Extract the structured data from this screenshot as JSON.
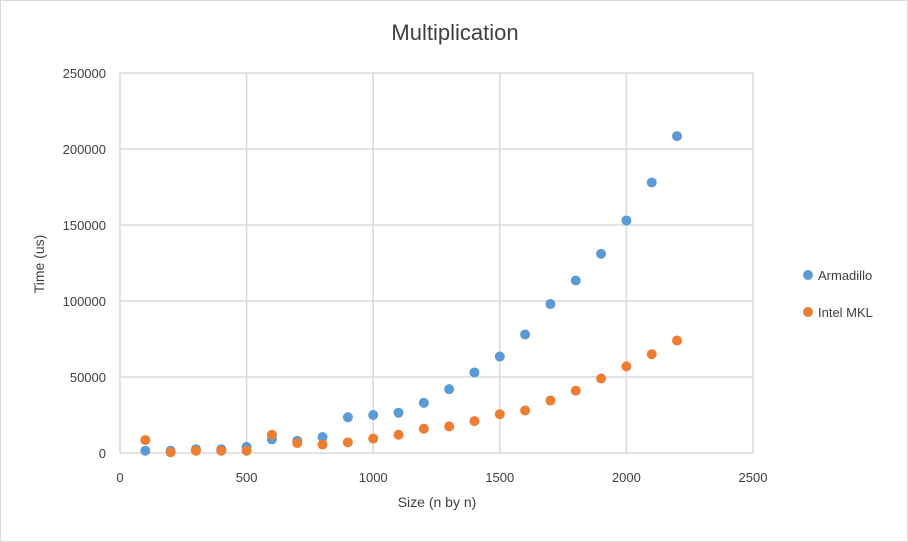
{
  "chart_data": {
    "type": "scatter",
    "title": "Multiplication",
    "xlabel": "Size (n by n)",
    "ylabel": "Time (us)",
    "xlim": [
      0,
      2500
    ],
    "ylim": [
      0,
      250000
    ],
    "xticks": [
      0,
      500,
      1000,
      1500,
      2000,
      2500
    ],
    "yticks": [
      0,
      50000,
      100000,
      150000,
      200000,
      250000
    ],
    "grid": "vertical and horizontal major gridlines",
    "legend_position": "right",
    "series": [
      {
        "name": "Armadillo",
        "color": "#5b9bd5",
        "points": [
          [
            100,
            1500
          ],
          [
            200,
            1500
          ],
          [
            300,
            2500
          ],
          [
            400,
            2500
          ],
          [
            500,
            4000
          ],
          [
            600,
            9000
          ],
          [
            700,
            8000
          ],
          [
            800,
            10500
          ],
          [
            900,
            23500
          ],
          [
            1000,
            25000
          ],
          [
            1100,
            26500
          ],
          [
            1200,
            33000
          ],
          [
            1300,
            42000
          ],
          [
            1400,
            53000
          ],
          [
            1500,
            63500
          ],
          [
            1600,
            78000
          ],
          [
            1700,
            98000
          ],
          [
            1800,
            113500
          ],
          [
            1900,
            131000
          ],
          [
            2000,
            153000
          ],
          [
            2100,
            178000
          ],
          [
            2200,
            208500
          ]
        ]
      },
      {
        "name": "Intel MKL",
        "color": "#ed7d31",
        "points": [
          [
            100,
            8500
          ],
          [
            200,
            500
          ],
          [
            300,
            1500
          ],
          [
            400,
            1500
          ],
          [
            500,
            1500
          ],
          [
            600,
            12000
          ],
          [
            700,
            6500
          ],
          [
            800,
            5500
          ],
          [
            900,
            7000
          ],
          [
            1000,
            9500
          ],
          [
            1100,
            12000
          ],
          [
            1200,
            16000
          ],
          [
            1300,
            17500
          ],
          [
            1400,
            21000
          ],
          [
            1500,
            25500
          ],
          [
            1600,
            28000
          ],
          [
            1700,
            34500
          ],
          [
            1800,
            41000
          ],
          [
            1900,
            49000
          ],
          [
            2000,
            57000
          ],
          [
            2100,
            65000
          ],
          [
            2200,
            74000
          ]
        ]
      }
    ]
  }
}
